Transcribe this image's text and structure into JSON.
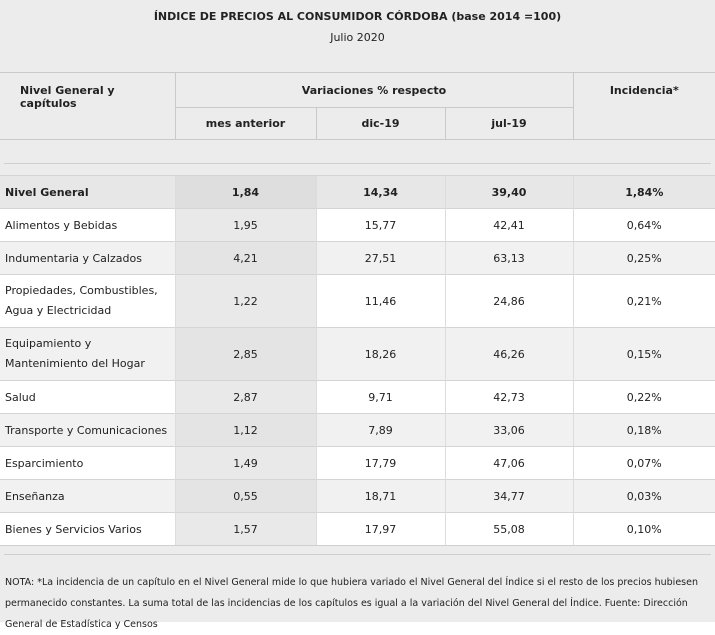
{
  "header": {
    "title": "ÍNDICE DE PRECIOS AL CONSUMIDOR CÓRDOBA (base 2014 =100)",
    "subtitle": "Julio 2020"
  },
  "columns": {
    "nivel": "Nivel General y capítulos",
    "variaciones": "Variaciones % respecto",
    "incidencia": "Incidencia*",
    "sub": [
      "mes anterior",
      "dic-19",
      "jul-19"
    ]
  },
  "rows": [
    {
      "name": "Nivel General",
      "mes": "1,84",
      "dic": "14,34",
      "jul": "39,40",
      "inc": "1,84%"
    },
    {
      "name": "Alimentos y Bebidas",
      "mes": "1,95",
      "dic": "15,77",
      "jul": "42,41",
      "inc": "0,64%"
    },
    {
      "name": "Indumentaria y Calzados",
      "mes": "4,21",
      "dic": "27,51",
      "jul": "63,13",
      "inc": "0,25%"
    },
    {
      "name": "Propiedades, Combustibles, Agua y Electricidad",
      "mes": "1,22",
      "dic": "11,46",
      "jul": "24,86",
      "inc": "0,21%"
    },
    {
      "name": "Equipamiento y Mantenimiento del Hogar",
      "mes": "2,85",
      "dic": "18,26",
      "jul": "46,26",
      "inc": "0,15%"
    },
    {
      "name": "Salud",
      "mes": "2,87",
      "dic": "9,71",
      "jul": "42,73",
      "inc": "0,22%"
    },
    {
      "name": "Transporte y Comunicaciones",
      "mes": "1,12",
      "dic": "7,89",
      "jul": "33,06",
      "inc": "0,18%"
    },
    {
      "name": "Esparcimiento",
      "mes": "1,49",
      "dic": "17,79",
      "jul": "47,06",
      "inc": "0,07%"
    },
    {
      "name": "Enseñanza",
      "mes": "0,55",
      "dic": "18,71",
      "jul": "34,77",
      "inc": "0,03%"
    },
    {
      "name": "Bienes y Servicios Varios",
      "mes": "1,57",
      "dic": "17,97",
      "jul": "55,08",
      "inc": "0,10%"
    }
  ],
  "note": "NOTA: *La incidencia de un capítulo en el Nivel General mide lo que hubiera variado el Nivel General del Índice si el resto de los precios hubiesen permanecido constantes. La suma total de las incidencias de los capítulos es igual a la variación del Nivel General del Índice. Fuente: Dirección General de Estadística y Censos"
}
